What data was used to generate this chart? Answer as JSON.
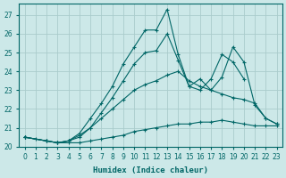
{
  "xlabel": "Humidex (Indice chaleur)",
  "background_color": "#cce8e8",
  "grid_color": "#aacccc",
  "line_color": "#006666",
  "xlim": [
    -0.5,
    23.5
  ],
  "ylim": [
    20.0,
    27.6
  ],
  "yticks": [
    20,
    21,
    22,
    23,
    24,
    25,
    26,
    27
  ],
  "xticks": [
    0,
    1,
    2,
    3,
    4,
    5,
    6,
    7,
    8,
    9,
    10,
    11,
    12,
    13,
    14,
    15,
    16,
    17,
    18,
    19,
    20,
    21,
    22,
    23
  ],
  "s1_x": [
    0,
    1,
    2,
    3,
    4,
    5,
    6,
    7,
    8,
    9,
    10,
    11,
    12,
    13,
    14,
    15,
    16,
    17,
    18,
    19,
    20,
    21,
    22,
    23
  ],
  "s1_y": [
    20.5,
    20.4,
    20.3,
    20.2,
    20.2,
    20.2,
    20.3,
    20.4,
    20.5,
    20.6,
    20.8,
    20.9,
    21.0,
    21.1,
    21.2,
    21.2,
    21.3,
    21.3,
    21.4,
    21.3,
    21.2,
    21.1,
    21.1,
    21.1
  ],
  "s2_x": [
    0,
    2,
    3,
    4,
    5,
    6,
    7,
    8,
    9,
    10,
    11,
    12,
    13,
    14,
    15,
    16,
    17,
    18,
    19,
    20,
    21,
    22,
    23
  ],
  "s2_y": [
    20.5,
    20.3,
    20.2,
    20.3,
    20.5,
    21.0,
    21.5,
    22.0,
    22.5,
    23.0,
    23.3,
    23.5,
    23.8,
    24.0,
    23.5,
    23.2,
    23.0,
    22.8,
    22.6,
    22.5,
    22.3,
    21.5,
    21.2
  ],
  "s3_x": [
    0,
    2,
    3,
    4,
    5,
    6,
    7,
    8,
    9,
    10,
    11,
    12,
    13,
    14,
    15,
    16,
    17,
    18,
    19,
    20,
    21,
    22,
    23
  ],
  "s3_y": [
    20.5,
    20.3,
    20.2,
    20.3,
    20.7,
    21.5,
    22.3,
    23.2,
    24.4,
    25.3,
    26.2,
    26.2,
    27.3,
    24.9,
    23.2,
    23.6,
    23.0,
    23.7,
    25.3,
    24.5,
    22.2,
    21.5,
    21.2
  ],
  "s4_x": [
    0,
    2,
    3,
    4,
    5,
    6,
    7,
    8,
    9,
    10,
    11,
    12,
    13,
    14,
    15,
    16,
    17,
    18,
    19,
    20
  ],
  "s4_y": [
    20.5,
    20.3,
    20.2,
    20.3,
    20.6,
    21.0,
    21.8,
    22.6,
    23.5,
    24.4,
    25.0,
    25.1,
    26.0,
    24.6,
    23.2,
    23.0,
    23.6,
    24.9,
    24.5,
    23.6
  ]
}
